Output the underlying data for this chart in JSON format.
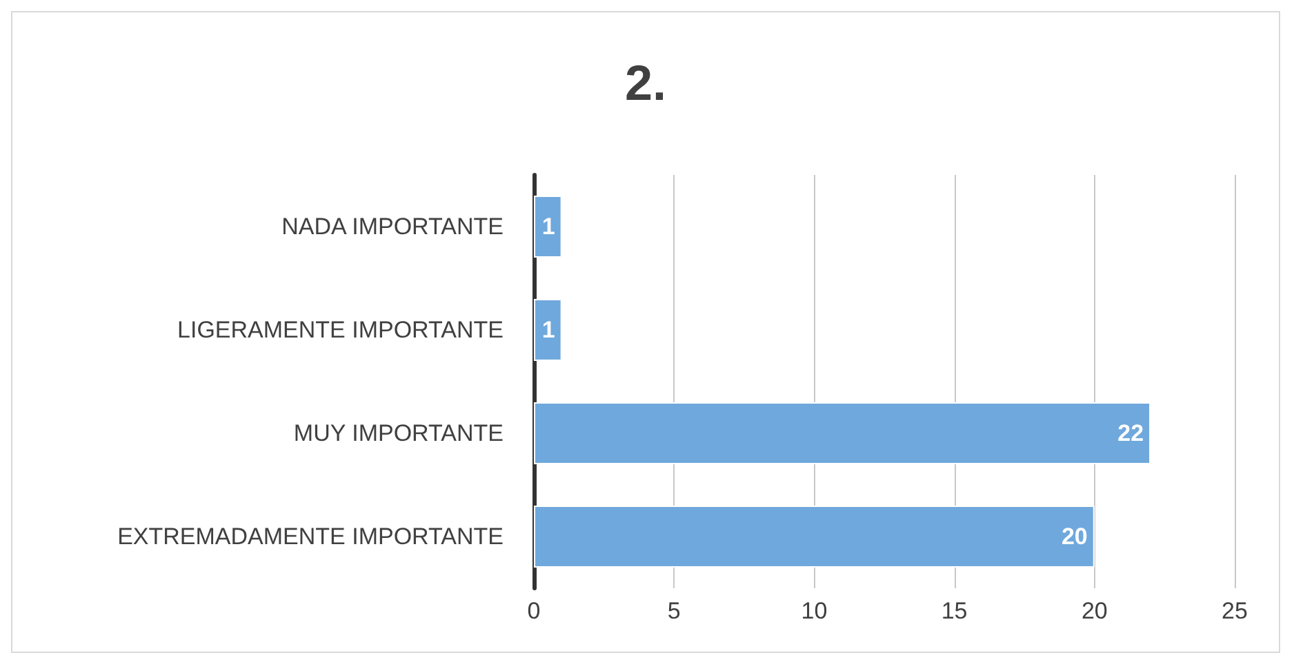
{
  "chart_data": {
    "type": "bar",
    "title": "2.",
    "orientation": "horizontal",
    "categories": [
      "NADA IMPORTANTE",
      "LIGERAMENTE IMPORTANTE",
      "MUY IMPORTANTE",
      "EXTREMADAMENTE IMPORTANTE"
    ],
    "values": [
      1,
      1,
      22,
      20
    ],
    "color": "#6fa8dc",
    "data_labels": true,
    "xlim": [
      0,
      25
    ],
    "xticks": [
      0,
      5,
      10,
      15,
      20,
      25
    ],
    "grid": "x"
  }
}
